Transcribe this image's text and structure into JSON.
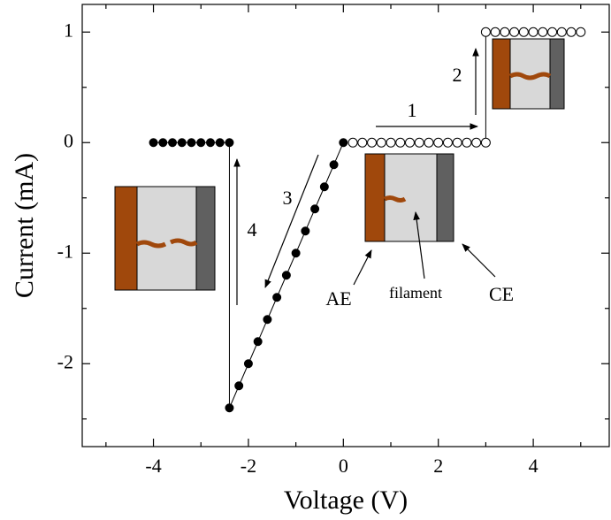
{
  "chart_data": {
    "type": "scatter",
    "xlabel": "Voltage (V)",
    "ylabel": "Current (mA)",
    "xlim": [
      -5.5,
      5.6
    ],
    "ylim": [
      -2.75,
      1.25
    ],
    "xticks": [
      -4,
      -2,
      0,
      2,
      4
    ],
    "yticks": [
      -2,
      -1,
      0,
      1
    ],
    "xminorticks": [
      -5,
      -3,
      -1,
      1,
      3,
      5
    ],
    "yminorticks": [
      -2.5,
      -1.5,
      -0.5,
      0.5
    ],
    "series": [
      {
        "color": "#000000",
        "marker": "filled",
        "x": [
          0,
          -0.2,
          -0.4,
          -0.6,
          -0.8,
          -1.0,
          -1.2,
          -1.4,
          -1.6,
          -1.8,
          -2.0,
          -2.2,
          -2.4,
          -2.4,
          -2.6,
          -2.8,
          -3.0,
          -3.2,
          -3.4,
          -3.6,
          -3.8,
          -4.0
        ],
        "values": [
          0,
          -0.2,
          -0.4,
          -0.6,
          -0.8,
          -1.0,
          -1.2,
          -1.4,
          -1.6,
          -1.8,
          -2.0,
          -2.2,
          -2.4,
          0,
          0,
          0,
          0,
          0,
          0,
          0,
          0,
          0
        ]
      },
      {
        "color": "#000000",
        "marker": "open",
        "x": [
          0.2,
          0.4,
          0.6,
          0.8,
          1.0,
          1.2,
          1.4,
          1.6,
          1.8,
          2.0,
          2.2,
          2.4,
          2.6,
          2.8,
          3.0,
          3.0,
          3.2,
          3.4,
          3.6,
          3.8,
          4.0,
          4.2,
          4.4,
          4.6,
          4.8,
          5.0
        ],
        "values": [
          0,
          0,
          0,
          0,
          0,
          0,
          0,
          0,
          0,
          0,
          0,
          0,
          0,
          0,
          0,
          1,
          1,
          1,
          1,
          1,
          1,
          1,
          1,
          1,
          1,
          1
        ]
      }
    ],
    "annotations": [
      "1",
      "2",
      "3",
      "4",
      "AE",
      "filament",
      "CE"
    ]
  }
}
